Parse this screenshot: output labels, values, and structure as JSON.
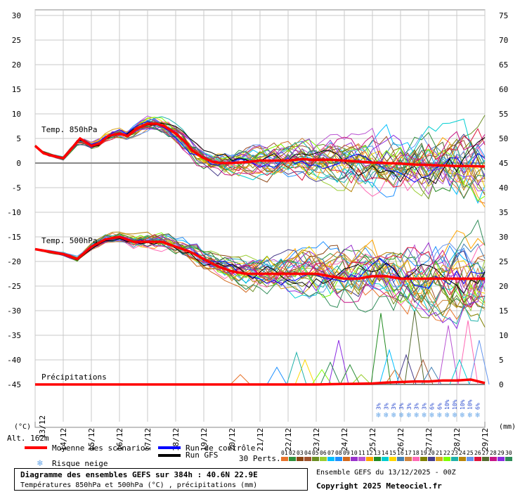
{
  "chart_data": {
    "type": "line",
    "title": "Diagramme des ensembles GEFS sur 384h : 40.6N 22.9E",
    "subtitle": "Températures 850hPa et 500hPa (°C) , précipitations (mm)",
    "source": "Ensemble GEFS du 13/12/2025 - 00Z",
    "copyright": "Copyright 2025 Meteociel.fr",
    "altitude_label": "Alt. 162m",
    "left_unit": "(°C)",
    "right_unit": "(mm)",
    "y_left_ticks": [
      30,
      25,
      20,
      15,
      10,
      5,
      0,
      -5,
      -10,
      -15,
      -20,
      -25,
      -30,
      -35,
      -40,
      -45
    ],
    "y_right_ticks": [
      75,
      70,
      65,
      60,
      55,
      50,
      45,
      40,
      35,
      30,
      25,
      20,
      15,
      10,
      5,
      0
    ],
    "ylim": [
      -45,
      30
    ],
    "x_ticks": [
      "14/12",
      "15/12",
      "16/12",
      "17/12",
      "18/12",
      "19/12",
      "20/12",
      "21/12",
      "22/12",
      "23/12",
      "24/12",
      "25/12",
      "26/12",
      "27/12",
      "28/12",
      "29/12"
    ],
    "x_first_label": "13/12",
    "section_labels": [
      "Temp. 850hPa",
      "Temp. 500hPa",
      "Précipitations"
    ],
    "legend": {
      "mean": "Moyenne des scénarios",
      "control": "Run de contrôle",
      "gfs": "Run GFS",
      "snow": "Risque neige",
      "perts_label": "30 Perts.",
      "mean_color": "#ff0000",
      "control_color": "#0000ff",
      "gfs_color": "#000000"
    },
    "perturbation_ids": [
      "01",
      "02",
      "03",
      "04",
      "05",
      "06",
      "07",
      "08",
      "09",
      "10",
      "11",
      "12",
      "13",
      "14",
      "15",
      "16",
      "17",
      "18",
      "19",
      "20",
      "21",
      "22",
      "23",
      "24",
      "25",
      "26",
      "27",
      "28",
      "29",
      "30"
    ],
    "perturbation_colors": [
      "#e8742c",
      "#2f8f3a",
      "#8b4513",
      "#a0522d",
      "#6b8e23",
      "#9acd32",
      "#00bfff",
      "#1e90ff",
      "#d2691e",
      "#9932cc",
      "#ba55d3",
      "#ffa500",
      "#228b22",
      "#00ced1",
      "#ffd700",
      "#4682b4",
      "#cd853f",
      "#ff69b4",
      "#808000",
      "#483d8b",
      "#daa520",
      "#7fff00",
      "#20b2aa",
      "#b8860b",
      "#6495ed",
      "#dc143c",
      "#556b2f",
      "#c71585",
      "#8a2be2",
      "#2e8b57"
    ],
    "snow_risk_percent": [
      "3%",
      "3%",
      "3%",
      "3%",
      "3%",
      "3%",
      "3%",
      "6%",
      "6%",
      "10%",
      "10%",
      "10%",
      "10%",
      "6%"
    ],
    "series": [
      {
        "id": "t850_mean",
        "name": "Moyenne des scénarios",
        "x_day": [
          0,
          0.3,
          0.6,
          1,
          1.3,
          1.6,
          2,
          2.3,
          2.6,
          3,
          3.3,
          3.6,
          4,
          4.3,
          4.6,
          5,
          5.3,
          5.6,
          6,
          6.3,
          6.6,
          7,
          7.5,
          8,
          8.5,
          9,
          9.5,
          10,
          10.5,
          11,
          11.5,
          12,
          12.5,
          13,
          13.5,
          14,
          14.5,
          15,
          15.5,
          16
        ],
        "values": [
          3.5,
          2,
          1.5,
          1,
          3,
          5,
          3.5,
          4,
          5.5,
          6,
          5.5,
          7,
          8,
          8,
          7.5,
          6,
          4.5,
          2.5,
          1,
          0.3,
          0,
          0,
          0.2,
          0.5,
          0.5,
          0.5,
          0.8,
          0.6,
          0.7,
          0.5,
          0.3,
          0.1,
          0,
          -0.1,
          -0.3,
          -0.4,
          -0.5,
          -0.6,
          -0.6,
          -0.7
        ]
      },
      {
        "id": "t500_mean",
        "name": "Moyenne des scénarios",
        "x_day": [
          0,
          0.5,
          1,
          1.5,
          2,
          2.5,
          3,
          3.5,
          4,
          4.5,
          5,
          5.5,
          6,
          6.5,
          7,
          7.5,
          8,
          8.5,
          9,
          9.5,
          10,
          10.5,
          11,
          11.5,
          12,
          12.5,
          13,
          13.5,
          14,
          14.5,
          15,
          15.5,
          16
        ],
        "values": [
          -17.5,
          -18,
          -18.5,
          -19.5,
          -17,
          -15.5,
          -15,
          -16,
          -16,
          -16,
          -17,
          -18,
          -19.5,
          -21,
          -22,
          -22.5,
          -22.5,
          -22.5,
          -22.5,
          -22.5,
          -22.5,
          -23,
          -23.5,
          -23.5,
          -23,
          -23,
          -23.5,
          -23.5,
          -23.5,
          -23.5,
          -23.5,
          -23.5,
          -23.5
        ]
      },
      {
        "id": "precip_mean",
        "name": "Moyenne des scénarios",
        "x_day": [
          0,
          2,
          4,
          6,
          8,
          10,
          11,
          12,
          12.5,
          13,
          13.5,
          14,
          14.5,
          15,
          15.5,
          16
        ],
        "values": [
          0,
          0,
          0,
          0,
          0,
          0,
          0.1,
          0.2,
          0.4,
          0.5,
          0.6,
          0.6,
          0.8,
          0.8,
          1,
          0.3
        ]
      }
    ]
  }
}
